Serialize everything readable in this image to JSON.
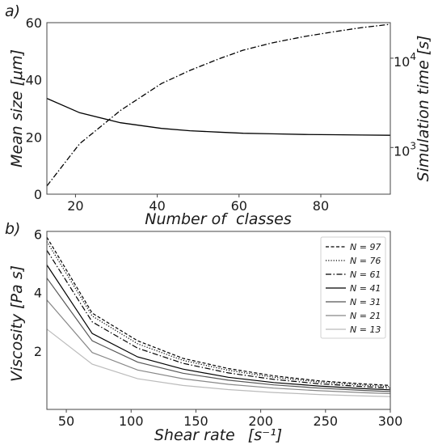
{
  "chart_data": [
    {
      "panel_label": "a)",
      "type": "line",
      "xlabel": "Number of  classes",
      "ylabel": "Mean size [μm]",
      "y2label": "Simulation time [s]",
      "xlim": [
        13,
        97
      ],
      "ylim": [
        0,
        60
      ],
      "y2lim": [
        300,
        25000
      ],
      "y2scale": "log",
      "grid": false,
      "xticks": [
        "20",
        "40",
        "60",
        "80"
      ],
      "yticks": [
        "0",
        "20",
        "40",
        "60"
      ],
      "y2ticks": [
        {
          "base": "10",
          "exp": "3",
          "value": 1000
        },
        {
          "base": "10",
          "exp": "4",
          "value": 10000
        }
      ],
      "x": [
        13,
        21,
        31,
        41,
        48,
        55,
        61,
        68,
        76,
        83,
        90,
        97
      ],
      "series": [
        {
          "axis": "left",
          "style": "solid",
          "values": [
            33.5,
            28.5,
            25.0,
            23.0,
            22.2,
            21.7,
            21.3,
            21.1,
            20.9,
            20.8,
            20.7,
            20.6
          ]
        },
        {
          "axis": "right",
          "style": "dashdot",
          "values": [
            370,
            1100,
            2600,
            5200,
            7300,
            9800,
            12300,
            14800,
            17500,
            19700,
            22000,
            24000
          ]
        }
      ]
    },
    {
      "panel_label": "b)",
      "type": "line",
      "xlabel": "Shear rate",
      "xlabel_unit": "[s⁻¹]",
      "ylabel": "Viscosity [Pa s]",
      "xlim": [
        35,
        300
      ],
      "ylim": [
        0,
        6.1
      ],
      "grid": false,
      "legend_position": "top-right",
      "xticks": [
        "50",
        "100",
        "150",
        "200",
        "250",
        "300"
      ],
      "yticks": [
        "2",
        "4",
        "6"
      ],
      "x": [
        35,
        70,
        105,
        140,
        175,
        210,
        245,
        280,
        300
      ],
      "series": [
        {
          "name": "N = 97",
          "style": "dashed",
          "color": "#000000",
          "values": [
            5.9,
            3.3,
            2.35,
            1.75,
            1.4,
            1.15,
            0.98,
            0.87,
            0.82
          ]
        },
        {
          "name": "N = 76",
          "style": "dotted",
          "color": "#000000",
          "values": [
            5.75,
            3.2,
            2.25,
            1.68,
            1.34,
            1.1,
            0.94,
            0.83,
            0.78
          ]
        },
        {
          "name": "N = 61",
          "style": "dashdot",
          "color": "#000000",
          "values": [
            5.45,
            3.0,
            2.1,
            1.58,
            1.25,
            1.03,
            0.88,
            0.78,
            0.73
          ]
        },
        {
          "name": "N = 41",
          "style": "solid",
          "color": "#000000",
          "values": [
            4.95,
            2.6,
            1.8,
            1.38,
            1.1,
            0.92,
            0.8,
            0.71,
            0.67
          ]
        },
        {
          "name": "N = 31",
          "style": "solid",
          "color": "#555555",
          "values": [
            4.5,
            2.35,
            1.62,
            1.24,
            1.0,
            0.84,
            0.73,
            0.65,
            0.61
          ]
        },
        {
          "name": "N = 21",
          "style": "solid",
          "color": "#888888",
          "values": [
            3.75,
            1.95,
            1.35,
            1.05,
            0.86,
            0.73,
            0.64,
            0.57,
            0.54
          ]
        },
        {
          "name": "N = 13",
          "style": "solid",
          "color": "#bbbbbb",
          "values": [
            2.75,
            1.55,
            1.05,
            0.82,
            0.68,
            0.58,
            0.51,
            0.46,
            0.44
          ]
        }
      ]
    }
  ]
}
